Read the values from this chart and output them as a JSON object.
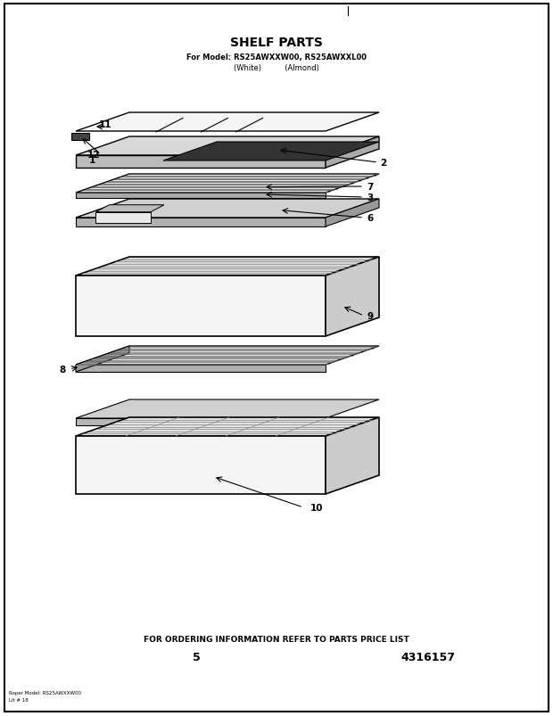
{
  "title": "SHELF PARTS",
  "subtitle_line1": "For Model: RS25AWXXW00, RS25AWXXL00",
  "subtitle_line2": "(White)          (Almond)",
  "footer_line1": "FOR ORDERING INFORMATION REFER TO PARTS PRICE LIST",
  "footer_page": "5",
  "footer_part": "4316157",
  "bg_color": "#ffffff"
}
